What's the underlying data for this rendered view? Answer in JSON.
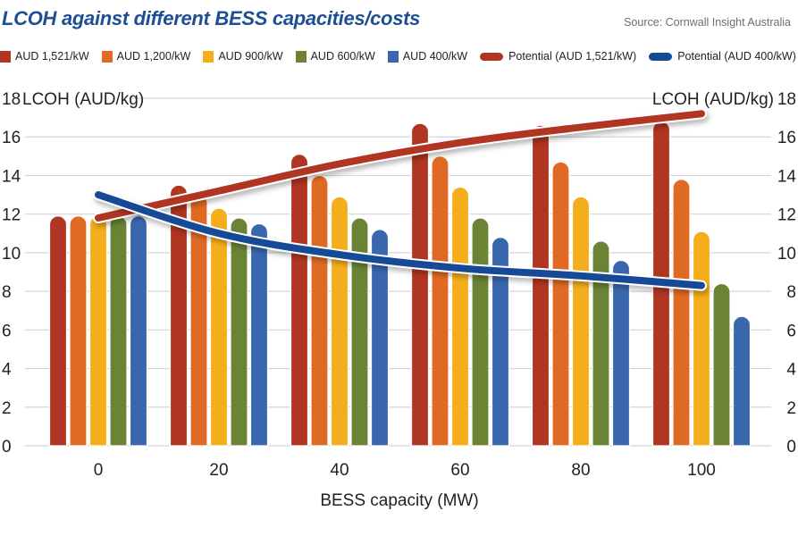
{
  "header": {
    "title": "LCOH against different BESS capacities/costs",
    "source": "Source: Cornwall Insight Australia"
  },
  "chart_data": {
    "type": "bar",
    "title": "LCOH against different BESS capacities/costs",
    "xlabel": "BESS capacity (MW)",
    "ylabel": "LCOH (AUD/kg)",
    "ylabel_right": "LCOH (AUD/kg)",
    "ylim": [
      0,
      18
    ],
    "yticks": [
      0,
      2,
      4,
      6,
      8,
      10,
      12,
      14,
      16,
      18
    ],
    "grid": true,
    "legend_position": "top",
    "categories": [
      "0",
      "20",
      "40",
      "60",
      "80",
      "100"
    ],
    "series": [
      {
        "name": "AUD 1,521/kW",
        "kind": "bar",
        "color": "#b03522",
        "values": [
          11.9,
          13.5,
          15.1,
          16.7,
          16.6,
          16.8
        ]
      },
      {
        "name": "AUD 1,200/kW",
        "kind": "bar",
        "color": "#e06a24",
        "values": [
          11.9,
          13.0,
          14.0,
          15.0,
          14.7,
          13.8
        ]
      },
      {
        "name": "AUD 900/kW",
        "kind": "bar",
        "color": "#f5ae1b",
        "values": [
          11.9,
          12.3,
          12.9,
          13.4,
          12.9,
          11.1
        ]
      },
      {
        "name": "AUD 600/kW",
        "kind": "bar",
        "color": "#6a8334",
        "values": [
          11.9,
          11.8,
          11.8,
          11.8,
          10.6,
          8.4
        ]
      },
      {
        "name": "AUD 400/kW",
        "kind": "bar",
        "color": "#3a66ad",
        "values": [
          11.9,
          11.5,
          11.2,
          10.8,
          9.6,
          6.7
        ]
      },
      {
        "name": "Potential (AUD 1,521/kW)",
        "kind": "line",
        "color": "#b03522",
        "values": [
          11.8,
          13.2,
          14.6,
          15.7,
          16.5,
          17.2
        ]
      },
      {
        "name": "Potential (AUD 400/kW)",
        "kind": "line",
        "color": "#124a96",
        "values": [
          13.0,
          11.0,
          9.9,
          9.2,
          8.8,
          8.3
        ]
      }
    ]
  }
}
